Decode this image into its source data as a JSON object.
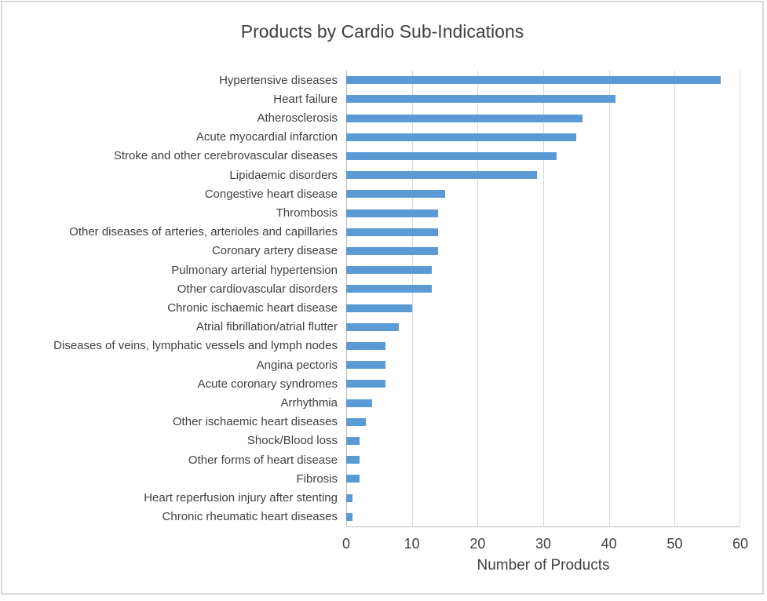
{
  "chart_data": {
    "type": "bar",
    "orientation": "horizontal",
    "title": "Products by Cardio Sub-Indications",
    "xlabel": "Number of Products",
    "ylabel": "",
    "xlim": [
      0,
      60
    ],
    "xticks": [
      0,
      10,
      20,
      30,
      40,
      50,
      60
    ],
    "grid": true,
    "legend": "none",
    "categories": [
      "Hypertensive diseases",
      "Heart failure",
      "Atherosclerosis",
      "Acute myocardial infarction",
      "Stroke and other cerebrovascular diseases",
      "Lipidaemic disorders",
      "Congestive heart disease",
      "Thrombosis",
      "Other diseases of arteries, arterioles and capillaries",
      "Coronary artery disease",
      "Pulmonary arterial hypertension",
      "Other cardiovascular disorders",
      "Chronic ischaemic heart disease",
      "Atrial fibrillation/atrial flutter",
      "Diseases of veins, lymphatic vessels and lymph nodes",
      "Angina pectoris",
      "Acute coronary syndromes",
      "Arrhythmia",
      "Other ischaemic heart diseases",
      "Shock/Blood loss",
      "Other forms of heart disease",
      "Fibrosis",
      "Heart reperfusion injury after stenting",
      "Chronic rheumatic heart diseases"
    ],
    "values": [
      57,
      41,
      36,
      35,
      32,
      29,
      15,
      14,
      14,
      14,
      13,
      13,
      10,
      8,
      6,
      6,
      6,
      4,
      3,
      2,
      2,
      2,
      1,
      1
    ],
    "colors": {
      "bar": "#5B9BD5",
      "gridline": "#D9D9D9",
      "axis_line": "#BFBFBF",
      "text": "#404040",
      "frame_border": "#D9D9D9"
    }
  }
}
